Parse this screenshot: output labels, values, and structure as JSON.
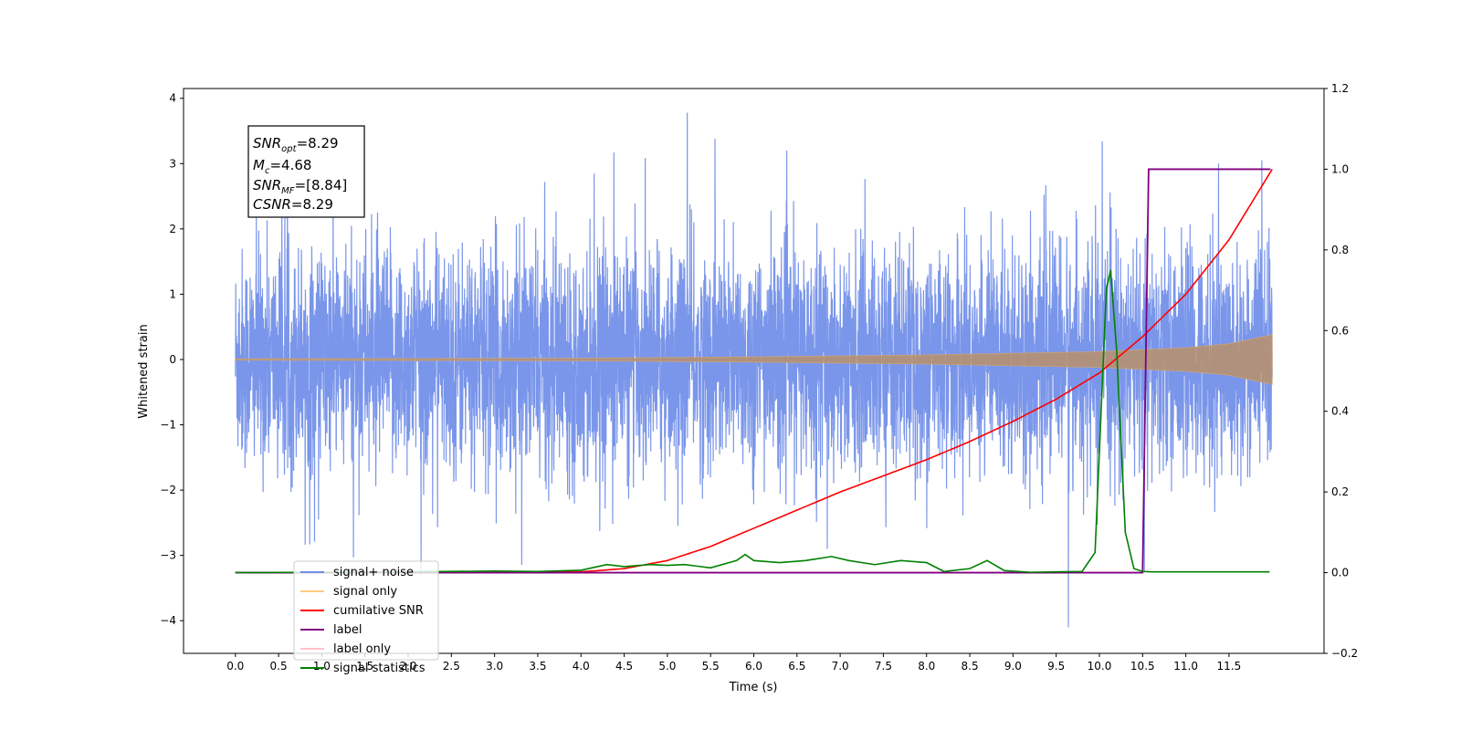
{
  "chart_data": {
    "type": "line",
    "xlabel": "Time (s)",
    "ylabel": "Whitened strain",
    "ylabel_right": "",
    "xlim": [
      -0.6,
      12.6
    ],
    "ylim": [
      -4.5,
      4.15
    ],
    "ylim_right": [
      -0.2,
      1.2
    ],
    "x_ticks": [
      "0.0",
      "0.5",
      "1.0",
      "1.5",
      "2.0",
      "2.5",
      "3.0",
      "3.5",
      "4.0",
      "4.5",
      "5.0",
      "5.5",
      "6.0",
      "6.5",
      "7.0",
      "7.5",
      "8.0",
      "8.5",
      "9.0",
      "9.5",
      "10.0",
      "10.5",
      "11.0",
      "11.5"
    ],
    "y_ticks": [
      "−4",
      "−3",
      "−2",
      "−1",
      "0",
      "1",
      "2",
      "3",
      "4"
    ],
    "y_ticks_right": [
      "−0.2",
      "0.0",
      "0.2",
      "0.4",
      "0.6",
      "0.8",
      "1.0",
      "1.2"
    ],
    "grid": false,
    "legend_position": "lower-left",
    "annotation": {
      "lines": [
        {
          "sym": "SNR",
          "sub": "opt",
          "value": "=8.29"
        },
        {
          "sym": "M",
          "sub": "c",
          "value": "=4.68"
        },
        {
          "sym": "SNR",
          "sub": "MF",
          "value": "=[8.84]"
        },
        {
          "sym": "CSNR",
          "sub": "",
          "value": "=8.29"
        }
      ]
    },
    "series": [
      {
        "name": "signal+ noise",
        "axis": "left",
        "color": "#4169e1",
        "style": "noise",
        "duration": 12.0,
        "typical_range": [
          -1.6,
          1.6
        ],
        "notable_extremes": [
          {
            "x": 5.23,
            "y": 3.78
          },
          {
            "x": 5.55,
            "y": 3.38
          },
          {
            "x": 4.38,
            "y": 3.17
          },
          {
            "x": 11.88,
            "y": 3.05
          },
          {
            "x": 11.38,
            "y": 3.0
          },
          {
            "x": 0.86,
            "y": -2.83
          },
          {
            "x": 2.15,
            "y": -3.3
          },
          {
            "x": 6.85,
            "y": -2.9
          },
          {
            "x": 9.64,
            "y": -4.1
          },
          {
            "x": 10.52,
            "y": -3.25
          }
        ]
      },
      {
        "name": "signal only",
        "axis": "left",
        "color": "#ffa500",
        "style": "chirp",
        "amplitude": [
          [
            0.0,
            0.01
          ],
          [
            4.0,
            0.02
          ],
          [
            6.0,
            0.04
          ],
          [
            8.0,
            0.07
          ],
          [
            10.0,
            0.12
          ],
          [
            11.0,
            0.18
          ],
          [
            11.5,
            0.24
          ],
          [
            12.0,
            0.38
          ]
        ]
      },
      {
        "name": "cumilative SNR",
        "axis": "right",
        "color": "#ff0000",
        "x": [
          0,
          1,
          2,
          3,
          4,
          4.5,
          5,
          5.5,
          6,
          6.5,
          7,
          7.5,
          8,
          8.5,
          9,
          9.5,
          10,
          10.5,
          11,
          11.5,
          12
        ],
        "y": [
          0,
          0,
          0,
          0,
          0.002,
          0.01,
          0.03,
          0.065,
          0.11,
          0.155,
          0.2,
          0.24,
          0.28,
          0.325,
          0.375,
          0.43,
          0.495,
          0.585,
          0.69,
          0.825,
          1.0
        ]
      },
      {
        "name": "label",
        "axis": "right",
        "color": "#800080",
        "x": [
          0,
          10.5,
          10.57,
          11.98
        ],
        "y": [
          0,
          0,
          1,
          1
        ]
      },
      {
        "name": "label only",
        "axis": "right",
        "color": "#ffc0cb",
        "x": [],
        "y": []
      },
      {
        "name": "signal statistics",
        "axis": "right",
        "color": "#008000",
        "x": [
          0,
          1,
          2,
          3,
          3.5,
          4,
          4.3,
          4.5,
          4.8,
          5.0,
          5.2,
          5.5,
          5.8,
          5.9,
          6.0,
          6.3,
          6.6,
          6.9,
          7.1,
          7.4,
          7.7,
          8.0,
          8.2,
          8.5,
          8.7,
          8.9,
          9.2,
          9.5,
          9.8,
          9.95,
          10.02,
          10.08,
          10.13,
          10.2,
          10.3,
          10.4,
          10.5,
          10.6,
          11.0,
          11.97
        ],
        "y": [
          0,
          0.001,
          0.002,
          0.004,
          0.003,
          0.006,
          0.02,
          0.015,
          0.02,
          0.018,
          0.02,
          0.012,
          0.03,
          0.045,
          0.03,
          0.025,
          0.03,
          0.04,
          0.03,
          0.02,
          0.03,
          0.025,
          0.003,
          0.01,
          0.03,
          0.005,
          0.001,
          0.002,
          0.003,
          0.05,
          0.4,
          0.7,
          0.75,
          0.55,
          0.1,
          0.01,
          0.003,
          0.002,
          0.002,
          0.002
        ]
      }
    ]
  }
}
